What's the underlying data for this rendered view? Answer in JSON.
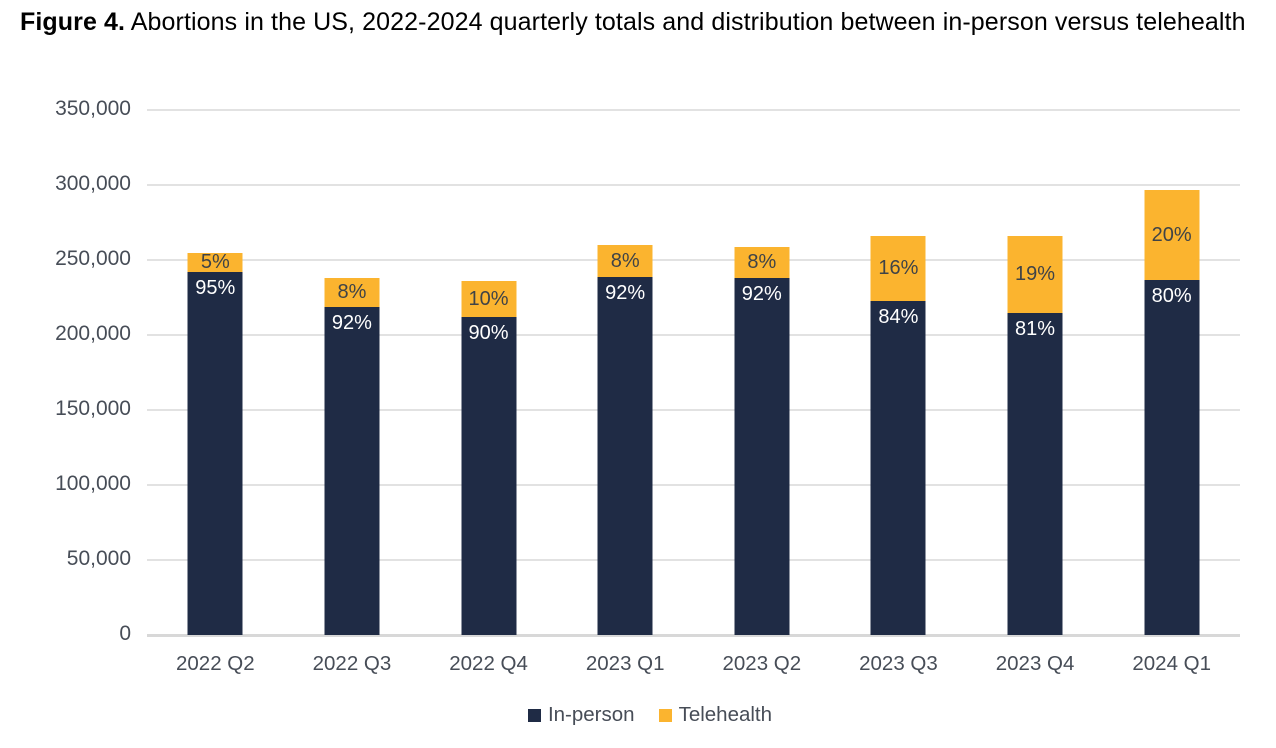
{
  "title": {
    "prefix": "Figure 4.",
    "text": " Abortions in the US, 2022-2024 quarterly totals and distribution between in-person versus telehealth"
  },
  "colors": {
    "in_person": "#1F2B45",
    "telehealth": "#FBB42F",
    "gridline": "#E2E2E2",
    "baseline": "#D8D8D8",
    "axis_text": "#474D57",
    "label_on_telehealth": "#3F4347",
    "label_on_in_person": "#FFFFFF"
  },
  "legend": [
    {
      "label": "In-person",
      "color": "#1F2B45"
    },
    {
      "label": "Telehealth",
      "color": "#FBB42F"
    }
  ],
  "chart_data": {
    "type": "bar",
    "stacked": true,
    "title": "Figure 4. Abortions in the US, 2022-2024 quarterly totals and distribution between in-person versus telehealth",
    "categories": [
      "2022 Q2",
      "2022 Q3",
      "2022 Q4",
      "2023 Q1",
      "2023 Q2",
      "2023 Q3",
      "2023 Q4",
      "2024 Q1"
    ],
    "series": [
      {
        "name": "In-person",
        "color": "#1F2B45",
        "values": [
          242000,
          219000,
          212000,
          239000,
          238000,
          223000,
          215000,
          237000
        ],
        "percent_labels": [
          "95%",
          "92%",
          "90%",
          "92%",
          "92%",
          "84%",
          "81%",
          "80%"
        ]
      },
      {
        "name": "Telehealth",
        "color": "#FBB42F",
        "values": [
          13000,
          19000,
          24000,
          21000,
          21000,
          43000,
          51000,
          60000
        ],
        "percent_labels": [
          "5%",
          "8%",
          "10%",
          "8%",
          "8%",
          "16%",
          "19%",
          "20%"
        ]
      }
    ],
    "totals": [
      255000,
      238000,
      236000,
      260000,
      259000,
      266000,
      266000,
      297000
    ],
    "xlabel": "",
    "ylabel": "",
    "ylim": [
      0,
      350000
    ],
    "ytick_step": 50000,
    "ytick_labels": [
      "0",
      "50,000",
      "100,000",
      "150,000",
      "200,000",
      "250,000",
      "300,000",
      "350,000"
    ],
    "grid": "horizontal",
    "legend_position": "bottom"
  }
}
